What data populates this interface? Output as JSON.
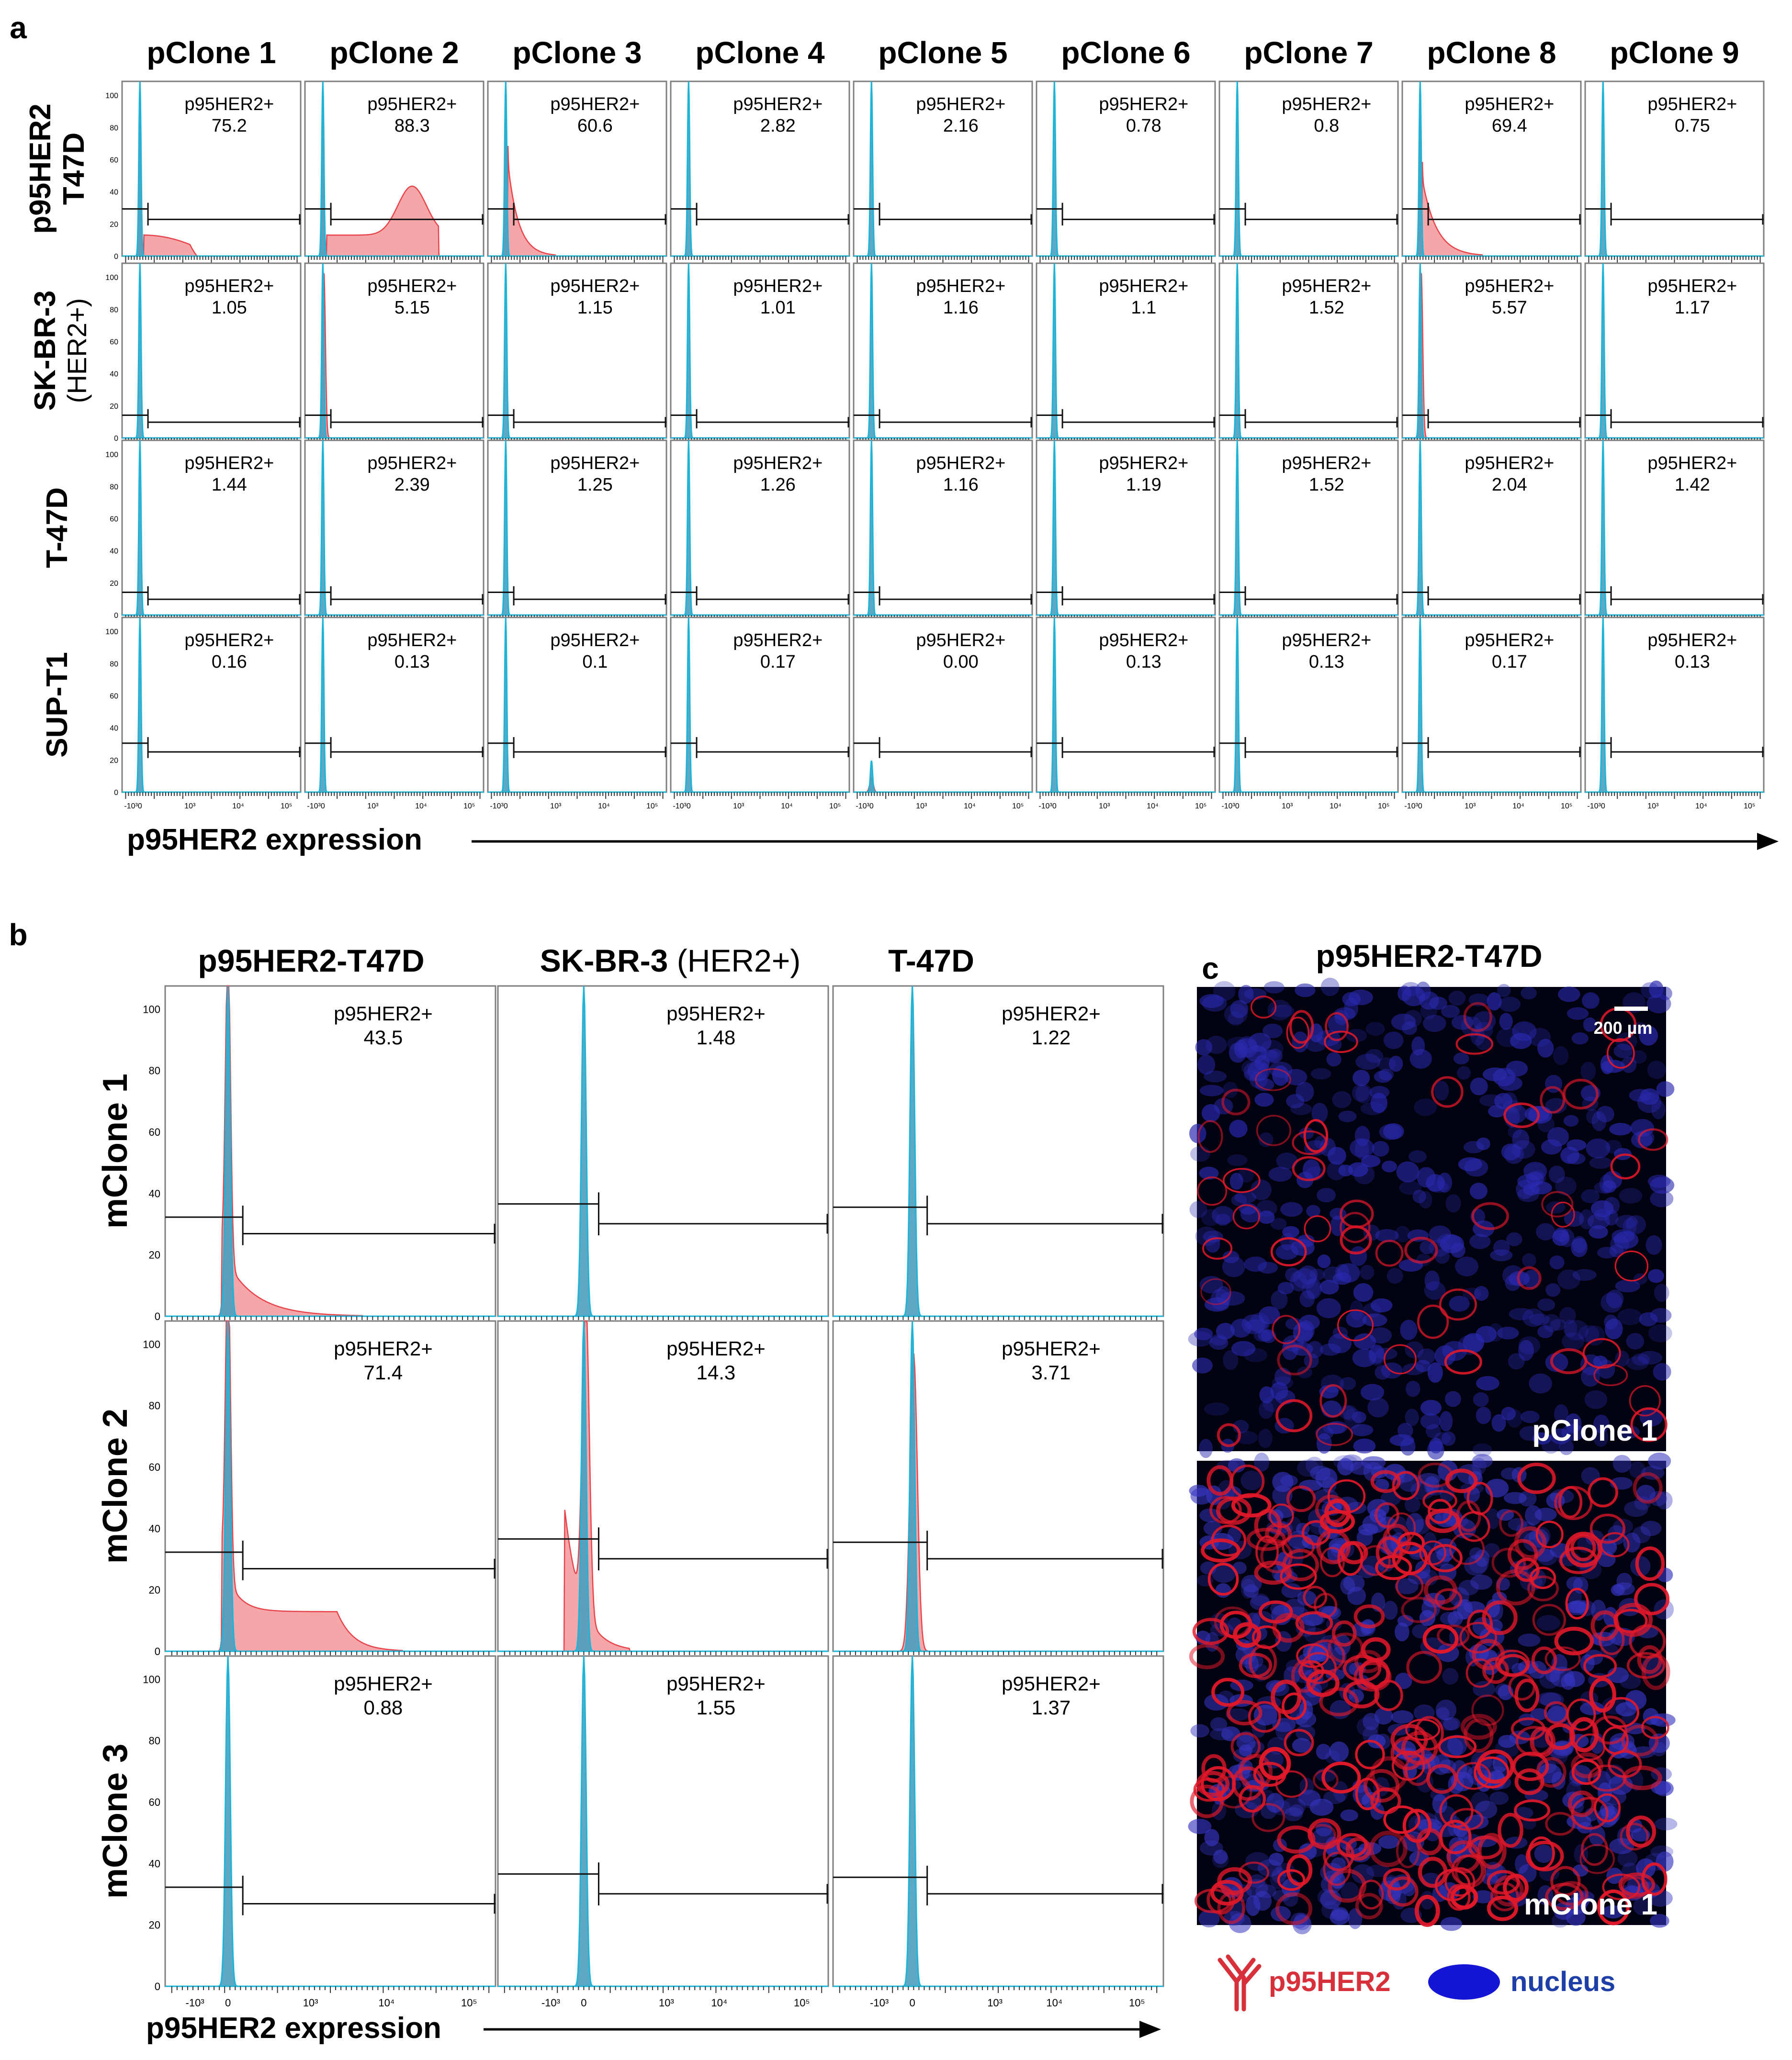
{
  "panels": {
    "a": {
      "letter": "a",
      "columns": [
        "pClone 1",
        "pClone 2",
        "pClone 3",
        "pClone 4",
        "pClone 5",
        "pClone 6",
        "pClone 7",
        "pClone 8",
        "pClone 9"
      ],
      "rows": [
        {
          "title": [
            "p95HER2",
            "T47D"
          ],
          "sub": ""
        },
        {
          "title": [
            "SK-BR-3"
          ],
          "sub": "(HER2+)"
        },
        {
          "title": [
            "T-47D"
          ],
          "sub": ""
        },
        {
          "title": [
            "SUP-T1"
          ],
          "sub": ""
        }
      ],
      "gate_label": "p95HER2+",
      "values": [
        [
          "75.2",
          "88.3",
          "60.6",
          "2.82",
          "2.16",
          "0.78",
          "0.8",
          "69.4",
          "0.75"
        ],
        [
          "1.05",
          "5.15",
          "1.15",
          "1.01",
          "1.16",
          "1.1",
          "1.52",
          "5.57",
          "1.17"
        ],
        [
          "1.44",
          "2.39",
          "1.25",
          "1.26",
          "1.16",
          "1.19",
          "1.52",
          "2.04",
          "1.42"
        ],
        [
          "0.16",
          "0.13",
          "0.1",
          "0.17",
          "0.00",
          "0.13",
          "0.13",
          "0.17",
          "0.13"
        ]
      ],
      "xlabel": "p95HER2 expression"
    },
    "b": {
      "letter": "b",
      "columns": [
        {
          "bold": "p95HER2-T47D",
          "normal": ""
        },
        {
          "bold": "SK-BR-3",
          "normal": " (HER2+)"
        },
        {
          "bold": "T-47D",
          "normal": ""
        }
      ],
      "rows": [
        "mClone 1",
        "mClone 2",
        "mClone 3"
      ],
      "gate_label": "p95HER2+",
      "values": [
        [
          "43.5",
          "1.48",
          "1.22"
        ],
        [
          "71.4",
          "14.3",
          "3.71"
        ],
        [
          "0.88",
          "1.55",
          "1.37"
        ]
      ],
      "xlabel": "p95HER2 expression"
    },
    "c": {
      "letter": "c",
      "title": "p95HER2-T47D",
      "scale_bar": "200 µm",
      "images": [
        "pClone 1",
        "mClone 1"
      ],
      "legend": {
        "antibody": "p95HER2",
        "nucleus": "nucleus"
      }
    }
  },
  "chart_data": {
    "type": "area",
    "y_ticks": [
      "0",
      "20",
      "40",
      "60",
      "80",
      "100"
    ],
    "ylim": [
      0,
      100
    ],
    "x_ticks": [
      "-10³",
      "0",
      "10³",
      "10⁴",
      "10⁵"
    ],
    "x_scale": "biexponential",
    "series": [
      {
        "color": "#1eb4d8"
      },
      {
        "color": "#e8434a"
      }
    ]
  },
  "colors": {
    "control": "#1eb4d8",
    "control_fill": "#4b9ebf",
    "stained": "#e8434a",
    "stained_fill": "#f4a6a8",
    "frame": "#7f7f7f",
    "label_blue": "#1f3fa8",
    "label_red": "#d8303a",
    "nucleus": "#1515d6"
  }
}
